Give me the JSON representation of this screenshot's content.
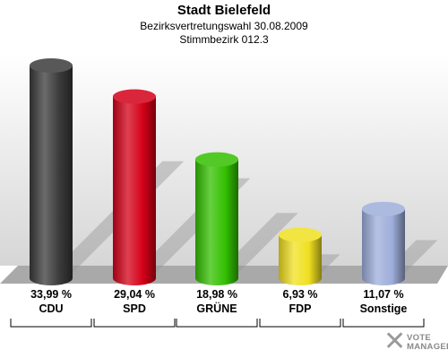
{
  "title": "Stadt Bielefeld",
  "subtitle_1": "Bezirksvertretungswahl 30.08.2009",
  "subtitle_2": "Stimmbezirk 012.3",
  "chart_data": {
    "type": "bar",
    "title": "Stadt Bielefeld",
    "subtitle": "Bezirksvertretungswahl 30.08.2009 / Stimmbezirk 012.3",
    "categories": [
      "CDU",
      "SPD",
      "GRÜNE",
      "FDP",
      "Sonstige"
    ],
    "values": [
      33.99,
      29.04,
      18.98,
      6.93,
      11.07
    ],
    "value_labels": [
      "33,99 %",
      "29,04 %",
      "18,98 %",
      "6,93 %",
      "11,07 %"
    ],
    "colors": [
      "#3a3a3a",
      "#d40018",
      "#33c000",
      "#f0e020",
      "#9eaedb"
    ],
    "ylim": [
      0,
      35
    ],
    "grid": false,
    "legend": "none"
  },
  "logo": {
    "mark": "✕",
    "line1": "VOTE",
    "line2": "MANAGER"
  }
}
